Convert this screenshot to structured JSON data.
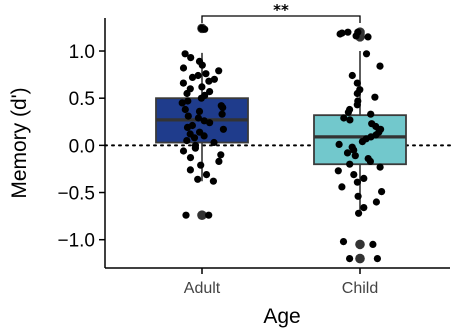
{
  "chart_data": {
    "type": "box",
    "xlabel": "Age",
    "ylabel": "Memory (d')",
    "ylim": [
      -1.3,
      1.35
    ],
    "yticks": [
      -1.0,
      -0.5,
      0.0,
      0.5,
      1.0
    ],
    "ytick_labels": [
      "−1.0",
      "−0.5",
      "0.0",
      "0.5",
      "1.0"
    ],
    "categories": [
      "Adult",
      "Child"
    ],
    "reference_line": {
      "y": 0.0,
      "style": "dotted"
    },
    "significance": {
      "between": [
        "Adult",
        "Child"
      ],
      "label": "**"
    },
    "groups": [
      {
        "name": "Adult",
        "color": "#1f3c8c",
        "q1": 0.03,
        "median": 0.27,
        "q3": 0.5,
        "whisker_low": -0.38,
        "whisker_high": 0.98,
        "outliers": [
          -0.74,
          1.24
        ],
        "points": [
          1.24,
          1.23,
          0.97,
          0.93,
          0.89,
          0.85,
          0.82,
          0.79,
          0.76,
          0.74,
          0.72,
          0.7,
          0.68,
          0.66,
          0.62,
          0.6,
          0.57,
          0.55,
          0.53,
          0.5,
          0.47,
          0.45,
          0.42,
          0.4,
          0.38,
          0.36,
          0.33,
          0.31,
          0.29,
          0.26,
          0.24,
          0.21,
          0.19,
          0.17,
          0.14,
          0.12,
          0.1,
          0.08,
          0.05,
          0.03,
          0.0,
          -0.03,
          -0.06,
          -0.1,
          -0.13,
          -0.17,
          -0.21,
          -0.26,
          -0.31,
          -0.36,
          -0.38,
          -0.74,
          -0.74
        ]
      },
      {
        "name": "Child",
        "color": "#72c8cc",
        "q1": -0.2,
        "median": 0.09,
        "q3": 0.32,
        "whisker_low": -0.72,
        "whisker_high": 1.0,
        "outliers": [
          1.2,
          1.18,
          1.15,
          -1.05,
          -1.2
        ],
        "points": [
          1.2,
          1.2,
          1.19,
          1.18,
          1.16,
          1.15,
          0.97,
          0.84,
          0.74,
          0.66,
          0.59,
          0.55,
          0.51,
          0.47,
          0.43,
          0.38,
          0.35,
          0.33,
          0.29,
          0.27,
          0.23,
          0.2,
          0.17,
          0.14,
          0.11,
          0.09,
          0.07,
          0.04,
          0.01,
          -0.02,
          -0.05,
          -0.08,
          -0.11,
          -0.14,
          -0.17,
          -0.2,
          -0.23,
          -0.27,
          -0.31,
          -0.35,
          -0.39,
          -0.44,
          -0.49,
          -0.54,
          -0.6,
          -0.66,
          -0.72,
          -1.02,
          -1.05,
          -1.2,
          -1.2
        ]
      }
    ]
  }
}
